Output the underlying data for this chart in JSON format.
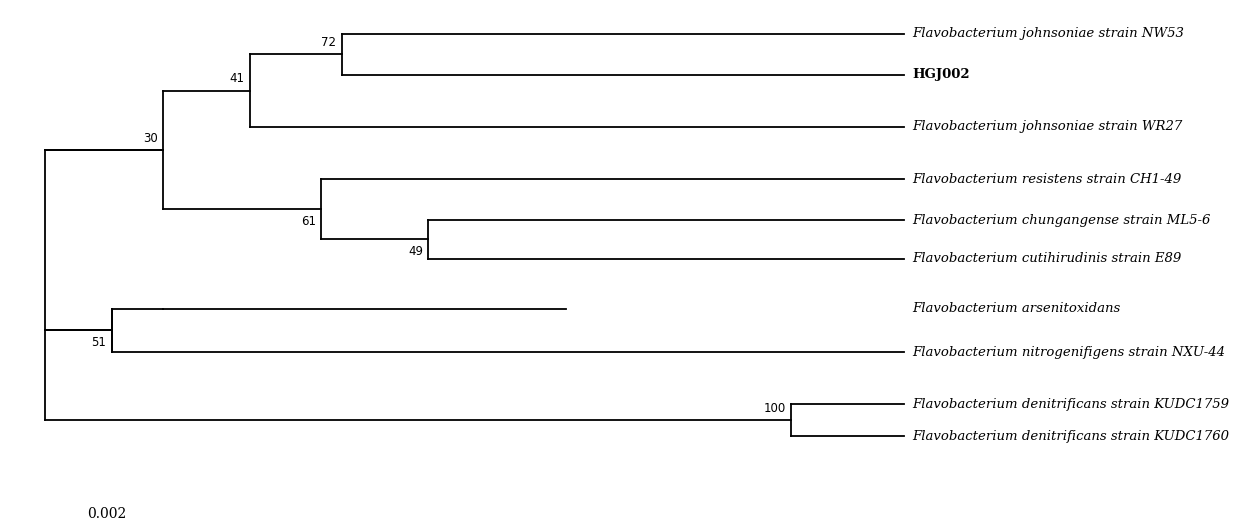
{
  "taxa": [
    "Flavobacterium johnsoniae strain NW53",
    "HGJ002",
    "Flavobacterium johnsoniae strain WR27",
    "Flavobacterium resistens strain CH1-49",
    "Flavobacterium chungangense strain ML5-6",
    "Flavobacterium cutihirudinis strain E89",
    "Flavobacterium arsenitoxidans",
    "Flavobacterium nitrogenifigens strain NXU-44",
    "Flavobacterium denitrificans strain KUDC1759",
    "Flavobacterium denitrificans strain KUDC1760"
  ],
  "bold_taxa": [
    "HGJ002"
  ],
  "italic_taxa": [
    "Flavobacterium johnsoniae strain NW53",
    "Flavobacterium johnsoniae strain WR27",
    "Flavobacterium resistens strain CH1-49",
    "Flavobacterium chungangense strain ML5-6",
    "Flavobacterium cutihirudinis strain E89",
    "Flavobacterium arsenitoxidans",
    "Flavobacterium nitrogenifigens strain NXU-44",
    "Flavobacterium denitrificans strain KUDC1759",
    "Flavobacterium denitrificans strain KUDC1760"
  ],
  "tree_color": "#000000",
  "background_color": "#ffffff",
  "font_size": 9.5,
  "scale_bar_value": "0.002",
  "scale_bar_label": "0.002"
}
